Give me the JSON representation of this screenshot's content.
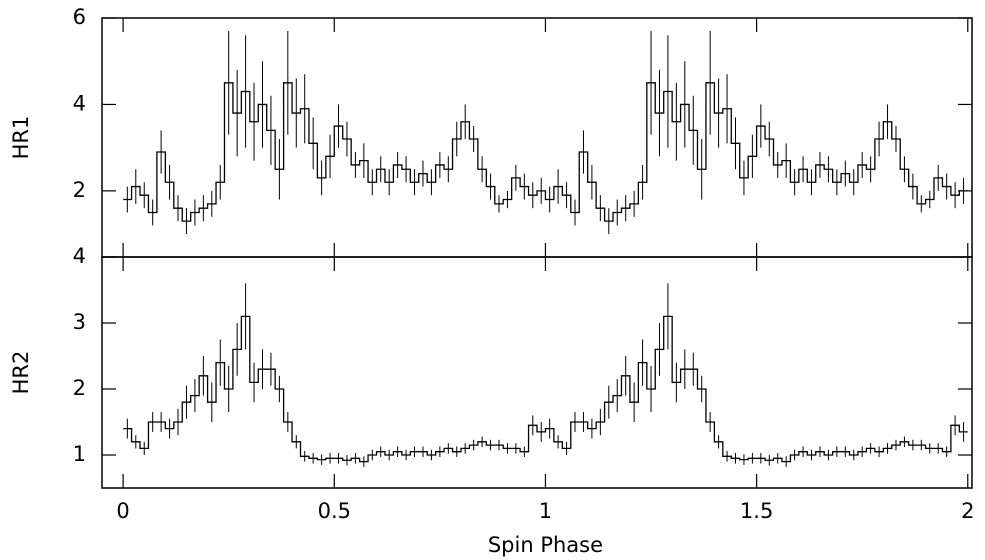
{
  "chart_data": [
    {
      "type": "step",
      "ylabel": "HR1",
      "x": [
        0.01,
        0.03,
        0.05,
        0.07,
        0.09,
        0.11,
        0.13,
        0.15,
        0.17,
        0.19,
        0.21,
        0.23,
        0.25,
        0.27,
        0.29,
        0.31,
        0.33,
        0.35,
        0.37,
        0.39,
        0.41,
        0.43,
        0.45,
        0.47,
        0.49,
        0.51,
        0.53,
        0.55,
        0.57,
        0.59,
        0.61,
        0.63,
        0.65,
        0.67,
        0.69,
        0.71,
        0.73,
        0.75,
        0.77,
        0.79,
        0.81,
        0.83,
        0.85,
        0.87,
        0.89,
        0.91,
        0.93,
        0.95,
        0.97,
        0.99,
        1.01,
        1.03,
        1.05,
        1.07,
        1.09,
        1.11,
        1.13,
        1.15,
        1.17,
        1.19,
        1.21,
        1.23,
        1.25,
        1.27,
        1.29,
        1.31,
        1.33,
        1.35,
        1.37,
        1.39,
        1.41,
        1.43,
        1.45,
        1.47,
        1.49,
        1.51,
        1.53,
        1.55,
        1.57,
        1.59,
        1.61,
        1.63,
        1.65,
        1.67,
        1.69,
        1.71,
        1.73,
        1.75,
        1.77,
        1.79,
        1.81,
        1.83,
        1.85,
        1.87,
        1.89,
        1.91,
        1.93,
        1.95,
        1.97,
        1.99
      ],
      "series": [
        {
          "color": "#000000",
          "values": [
            1.8,
            2.1,
            1.9,
            1.5,
            2.9,
            2.2,
            1.6,
            1.3,
            1.5,
            1.6,
            1.7,
            2.2,
            4.5,
            3.8,
            4.3,
            3.6,
            4.0,
            3.4,
            2.5,
            4.5,
            3.8,
            3.9,
            3.1,
            2.3,
            2.8,
            3.5,
            3.2,
            2.6,
            2.7,
            2.2,
            2.5,
            2.2,
            2.6,
            2.5,
            2.2,
            2.4,
            2.2,
            2.6,
            2.5,
            3.2,
            3.6,
            3.2,
            2.5,
            2.1,
            1.7,
            1.8,
            2.3,
            2.1,
            1.9,
            2.0,
            1.8,
            2.1,
            1.9,
            1.5,
            2.9,
            2.2,
            1.6,
            1.3,
            1.5,
            1.6,
            1.7,
            2.2,
            4.5,
            3.8,
            4.3,
            3.6,
            4.0,
            3.4,
            2.5,
            4.5,
            3.8,
            3.9,
            3.1,
            2.3,
            2.8,
            3.5,
            3.2,
            2.6,
            2.7,
            2.2,
            2.5,
            2.2,
            2.6,
            2.5,
            2.2,
            2.4,
            2.2,
            2.6,
            2.5,
            3.2,
            3.6,
            3.2,
            2.5,
            2.1,
            1.7,
            1.8,
            2.3,
            2.1,
            1.9,
            2.0
          ],
          "errors": [
            0.3,
            0.4,
            0.3,
            0.3,
            0.5,
            0.4,
            0.3,
            0.3,
            0.3,
            0.3,
            0.3,
            0.4,
            1.2,
            1.0,
            1.3,
            0.9,
            1.0,
            0.8,
            0.7,
            1.2,
            0.8,
            0.8,
            0.6,
            0.4,
            0.5,
            0.5,
            0.4,
            0.3,
            0.4,
            0.3,
            0.3,
            0.3,
            0.3,
            0.3,
            0.3,
            0.3,
            0.3,
            0.3,
            0.3,
            0.4,
            0.4,
            0.3,
            0.3,
            0.3,
            0.2,
            0.2,
            0.3,
            0.3,
            0.3,
            0.3,
            0.3,
            0.4,
            0.3,
            0.3,
            0.5,
            0.4,
            0.3,
            0.3,
            0.3,
            0.3,
            0.3,
            0.4,
            1.2,
            1.0,
            1.3,
            0.9,
            1.0,
            0.8,
            0.7,
            1.2,
            0.8,
            0.8,
            0.6,
            0.4,
            0.5,
            0.5,
            0.4,
            0.3,
            0.4,
            0.3,
            0.3,
            0.3,
            0.3,
            0.3,
            0.3,
            0.3,
            0.3,
            0.3,
            0.3,
            0.4,
            0.4,
            0.3,
            0.3,
            0.3,
            0.2,
            0.2,
            0.3,
            0.3,
            0.3,
            0.3
          ]
        }
      ],
      "xlim": [
        -0.05,
        2.01
      ],
      "xticks": [
        0,
        0.5,
        1,
        1.5,
        2
      ],
      "ylim": [
        0.47,
        6
      ],
      "yticks": [
        2,
        4,
        6
      ]
    },
    {
      "type": "step",
      "ylabel": "HR2",
      "xlabel": "Spin Phase",
      "x": [
        0.01,
        0.03,
        0.05,
        0.07,
        0.09,
        0.11,
        0.13,
        0.15,
        0.17,
        0.19,
        0.21,
        0.23,
        0.25,
        0.27,
        0.29,
        0.31,
        0.33,
        0.35,
        0.37,
        0.39,
        0.41,
        0.43,
        0.45,
        0.47,
        0.49,
        0.51,
        0.53,
        0.55,
        0.57,
        0.59,
        0.61,
        0.63,
        0.65,
        0.67,
        0.69,
        0.71,
        0.73,
        0.75,
        0.77,
        0.79,
        0.81,
        0.83,
        0.85,
        0.87,
        0.89,
        0.91,
        0.93,
        0.95,
        0.97,
        0.99,
        1.01,
        1.03,
        1.05,
        1.07,
        1.09,
        1.11,
        1.13,
        1.15,
        1.17,
        1.19,
        1.21,
        1.23,
        1.25,
        1.27,
        1.29,
        1.31,
        1.33,
        1.35,
        1.37,
        1.39,
        1.41,
        1.43,
        1.45,
        1.47,
        1.49,
        1.51,
        1.53,
        1.55,
        1.57,
        1.59,
        1.61,
        1.63,
        1.65,
        1.67,
        1.69,
        1.71,
        1.73,
        1.75,
        1.77,
        1.79,
        1.81,
        1.83,
        1.85,
        1.87,
        1.89,
        1.91,
        1.93,
        1.95,
        1.97,
        1.99
      ],
      "series": [
        {
          "color": "#000000",
          "values": [
            1.4,
            1.2,
            1.1,
            1.5,
            1.5,
            1.4,
            1.5,
            1.8,
            1.9,
            2.2,
            1.8,
            2.4,
            2.0,
            2.6,
            3.1,
            2.1,
            2.3,
            2.3,
            2.0,
            1.5,
            1.2,
            0.98,
            0.95,
            0.93,
            0.95,
            0.95,
            0.92,
            0.95,
            0.9,
            1.0,
            1.05,
            1.0,
            1.05,
            1.0,
            1.05,
            1.05,
            1.0,
            1.05,
            1.1,
            1.05,
            1.1,
            1.15,
            1.2,
            1.15,
            1.15,
            1.1,
            1.1,
            1.05,
            1.45,
            1.35,
            1.4,
            1.2,
            1.1,
            1.5,
            1.5,
            1.4,
            1.5,
            1.8,
            1.9,
            2.2,
            1.8,
            2.4,
            2.0,
            2.6,
            3.1,
            2.1,
            2.3,
            2.3,
            2.0,
            1.5,
            1.2,
            0.98,
            0.95,
            0.93,
            0.95,
            0.95,
            0.92,
            0.95,
            0.9,
            1.0,
            1.05,
            1.0,
            1.05,
            1.0,
            1.05,
            1.05,
            1.0,
            1.05,
            1.1,
            1.05,
            1.1,
            1.15,
            1.2,
            1.15,
            1.15,
            1.1,
            1.1,
            1.05,
            1.45,
            1.35
          ],
          "errors": [
            0.15,
            0.1,
            0.1,
            0.15,
            0.15,
            0.15,
            0.2,
            0.25,
            0.25,
            0.3,
            0.3,
            0.35,
            0.35,
            0.4,
            0.5,
            0.3,
            0.3,
            0.25,
            0.2,
            0.15,
            0.1,
            0.08,
            0.08,
            0.08,
            0.08,
            0.08,
            0.08,
            0.08,
            0.08,
            0.08,
            0.08,
            0.08,
            0.08,
            0.08,
            0.08,
            0.08,
            0.08,
            0.08,
            0.08,
            0.08,
            0.08,
            0.08,
            0.08,
            0.08,
            0.08,
            0.08,
            0.08,
            0.08,
            0.15,
            0.15,
            0.15,
            0.1,
            0.1,
            0.15,
            0.15,
            0.15,
            0.2,
            0.25,
            0.25,
            0.3,
            0.3,
            0.35,
            0.35,
            0.4,
            0.5,
            0.3,
            0.3,
            0.25,
            0.2,
            0.15,
            0.1,
            0.08,
            0.08,
            0.08,
            0.08,
            0.08,
            0.08,
            0.08,
            0.08,
            0.08,
            0.08,
            0.08,
            0.08,
            0.08,
            0.08,
            0.08,
            0.08,
            0.08,
            0.08,
            0.08,
            0.08,
            0.08,
            0.08,
            0.08,
            0.08,
            0.08,
            0.08,
            0.08,
            0.15,
            0.15
          ]
        }
      ],
      "xlim": [
        -0.05,
        2.01
      ],
      "xticks": [
        0,
        0.5,
        1,
        1.5,
        2
      ],
      "ylim": [
        0.5,
        4
      ],
      "yticks": [
        1,
        2,
        3,
        4
      ]
    }
  ]
}
